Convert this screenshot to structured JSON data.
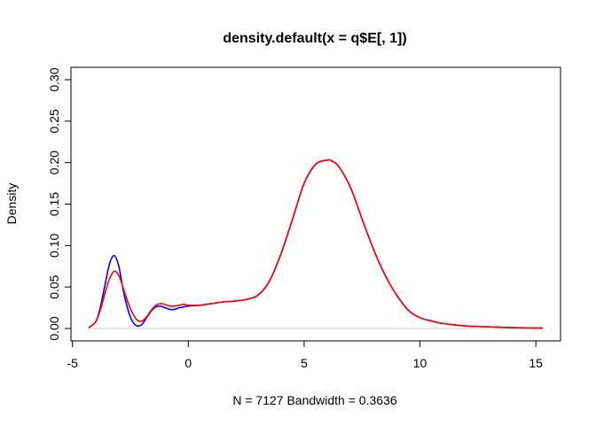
{
  "chart_data": {
    "type": "line",
    "title": "density.default(x = q$E[, 1])",
    "xlabel": "N = 7127   Bandwidth = 0.3636",
    "ylabel": "Density",
    "xlim": [
      -4.3,
      15.3
    ],
    "ylim": [
      0,
      0.3
    ],
    "x_ticks": [
      -5,
      0,
      5,
      10,
      15
    ],
    "y_ticks": [
      0.0,
      0.05,
      0.1,
      0.15,
      0.2,
      0.25,
      0.3
    ],
    "x_tick_labels": [
      "-5",
      "0",
      "5",
      "10",
      "15"
    ],
    "y_tick_labels": [
      "0.00",
      "0.05",
      "0.10",
      "0.15",
      "0.20",
      "0.25",
      "0.30"
    ],
    "grid": false,
    "zero_line": true,
    "series": [
      {
        "color": "#0000ff",
        "x": [
          -4.3,
          -4.0,
          -3.8,
          -3.6,
          -3.4,
          -3.2,
          -3.0,
          -2.8,
          -2.6,
          -2.4,
          -2.2,
          -2.0,
          -1.8,
          -1.6,
          -1.4,
          -1.2,
          -1.0,
          -0.8,
          -0.6,
          -0.4,
          -0.2,
          0.0,
          0.5,
          1.0,
          1.5,
          2.0,
          2.5,
          3.0,
          3.5,
          4.0,
          4.5,
          5.0,
          5.5,
          6.0,
          6.2,
          6.5,
          7.0,
          7.5,
          8.0,
          8.5,
          9.0,
          9.5,
          10.0,
          10.5,
          11.0,
          12.0,
          13.0,
          14.0,
          15.3
        ],
        "y": [
          0.001,
          0.008,
          0.025,
          0.052,
          0.078,
          0.088,
          0.075,
          0.045,
          0.022,
          0.008,
          0.003,
          0.005,
          0.013,
          0.021,
          0.026,
          0.027,
          0.025,
          0.023,
          0.023,
          0.025,
          0.026,
          0.027,
          0.028,
          0.03,
          0.032,
          0.033,
          0.035,
          0.04,
          0.057,
          0.09,
          0.132,
          0.175,
          0.198,
          0.203,
          0.202,
          0.195,
          0.17,
          0.132,
          0.095,
          0.064,
          0.04,
          0.022,
          0.013,
          0.009,
          0.006,
          0.003,
          0.002,
          0.001,
          0.0005
        ]
      },
      {
        "color": "#ff0000",
        "x": [
          -4.3,
          -4.0,
          -3.8,
          -3.6,
          -3.4,
          -3.2,
          -3.0,
          -2.8,
          -2.6,
          -2.4,
          -2.2,
          -2.0,
          -1.8,
          -1.6,
          -1.4,
          -1.2,
          -1.0,
          -0.8,
          -0.6,
          -0.4,
          -0.2,
          0.0,
          0.5,
          1.0,
          1.5,
          2.0,
          2.5,
          3.0,
          3.5,
          4.0,
          4.5,
          5.0,
          5.5,
          6.0,
          6.2,
          6.5,
          7.0,
          7.5,
          8.0,
          8.5,
          9.0,
          9.5,
          10.0,
          10.5,
          11.0,
          12.0,
          13.0,
          14.0,
          15.3
        ],
        "y": [
          0.001,
          0.008,
          0.022,
          0.042,
          0.06,
          0.069,
          0.064,
          0.048,
          0.031,
          0.018,
          0.01,
          0.009,
          0.014,
          0.022,
          0.028,
          0.03,
          0.029,
          0.027,
          0.027,
          0.028,
          0.029,
          0.028,
          0.028,
          0.03,
          0.032,
          0.033,
          0.035,
          0.04,
          0.057,
          0.09,
          0.132,
          0.175,
          0.198,
          0.203,
          0.202,
          0.195,
          0.17,
          0.132,
          0.095,
          0.064,
          0.04,
          0.022,
          0.013,
          0.009,
          0.006,
          0.003,
          0.002,
          0.001,
          0.0005
        ]
      }
    ]
  }
}
